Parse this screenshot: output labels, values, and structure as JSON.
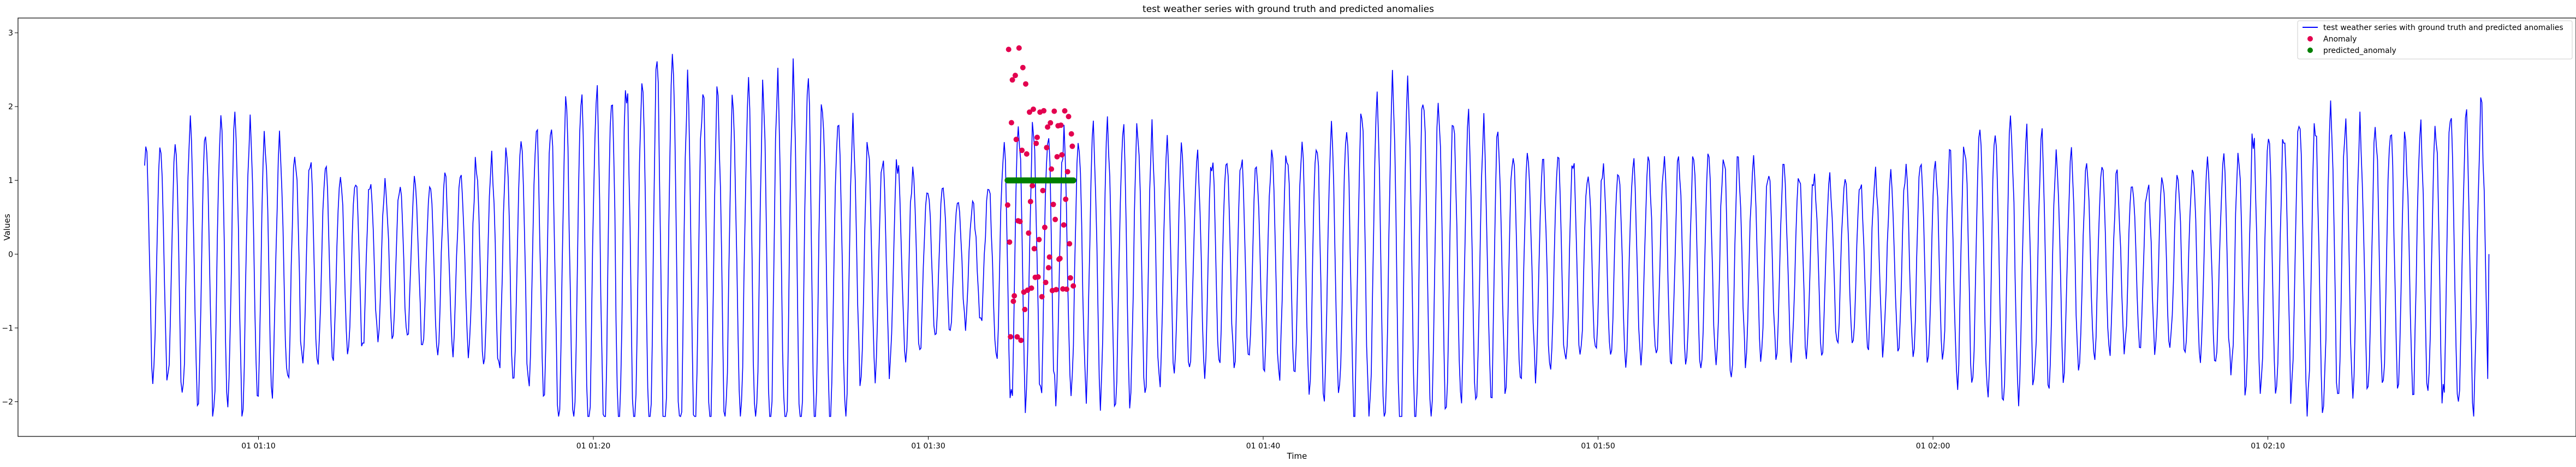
{
  "chart_data": {
    "type": "line",
    "title": "test weather series with ground truth and predicted anomalies",
    "xlabel": "Time",
    "ylabel": "Values",
    "x_ticks": [
      "01 01:10",
      "01 01:20",
      "01 01:30",
      "01 01:40",
      "01 01:50",
      "01 02:00",
      "01 02:10"
    ],
    "x_tick_minutes": [
      70,
      80,
      90,
      100,
      110,
      120,
      130
    ],
    "y_ticks": [
      -2,
      -1,
      0,
      1,
      2,
      3
    ],
    "xlim_minutes": [
      62.82,
      139.2
    ],
    "ylim": [
      -2.47,
      3.2
    ],
    "legend_position": "upper right",
    "grid": false,
    "series": [
      {
        "name": "test weather series with ground truth and predicted anomalies",
        "kind": "line",
        "color": "#0000ff",
        "x_range_minutes": [
          66.6,
          136.6
        ],
        "points": 2000,
        "approx_cycle_minutes": 0.45,
        "amplitude_range": [
          -2.2,
          2.9
        ],
        "start_value": 1.2,
        "end_value": 0.0
      },
      {
        "name": "Anomaly",
        "kind": "scatter",
        "color": "#e3004f",
        "x_range_minutes": [
          92.37,
          94.33
        ],
        "y_range": [
          -1.3,
          2.9
        ],
        "points": 70
      },
      {
        "name": "predicted_anomaly",
        "kind": "scatter",
        "color": "#007f00",
        "x_range_minutes": [
          92.37,
          94.33
        ],
        "values": [
          1.0
        ],
        "points": 60
      }
    ]
  }
}
